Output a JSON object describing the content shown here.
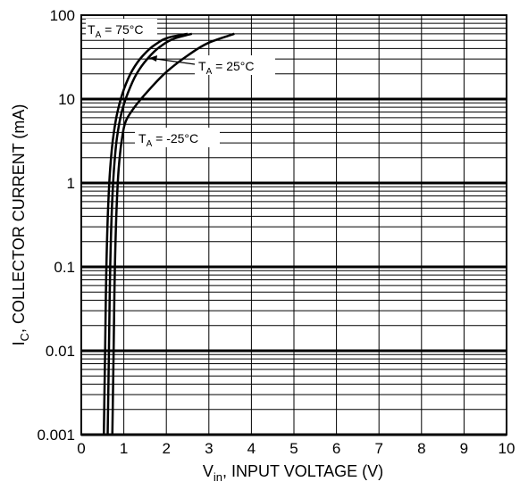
{
  "chart_data": {
    "type": "line",
    "title": "",
    "xlabel": {
      "main": "V",
      "sub": "in",
      "rest": ", INPUT VOLTAGE (V)"
    },
    "ylabel": {
      "main": "I",
      "sub": "C",
      "rest": ", COLLECTOR CURRENT (mA)"
    },
    "xlim": [
      0,
      10
    ],
    "ylim": [
      0.001,
      100
    ],
    "yscale": "log",
    "grid": true,
    "x_ticks": [
      0,
      1,
      2,
      3,
      4,
      5,
      6,
      7,
      8,
      9,
      10
    ],
    "x_tick_labels": [
      "0",
      "1",
      "2",
      "3",
      "4",
      "5",
      "6",
      "7",
      "8",
      "9",
      "10"
    ],
    "y_ticks": [
      0.001,
      0.01,
      0.1,
      1,
      10,
      100
    ],
    "y_tick_labels": [
      "0.001",
      "0.01",
      "0.1",
      "1",
      "10",
      "100"
    ],
    "series": [
      {
        "name": "T_A = 75°C",
        "label_main": "T",
        "label_sub": "A",
        "label_rest": " = 75°C",
        "x": [
          0.53,
          0.56,
          0.59,
          0.63,
          0.68,
          0.75,
          0.85,
          1.0,
          1.2,
          1.45,
          1.75,
          2.1,
          2.5
        ],
        "y": [
          0.001,
          0.01,
          0.1,
          0.5,
          1.5,
          3.5,
          7,
          13,
          22,
          33,
          45,
          55,
          60
        ]
      },
      {
        "name": "T_A = 25°C",
        "label_main": "T",
        "label_sub": "A",
        "label_rest": " = 25°C",
        "x": [
          0.62,
          0.65,
          0.68,
          0.72,
          0.77,
          0.84,
          0.95,
          1.1,
          1.3,
          1.55,
          1.85,
          2.2,
          2.6
        ],
        "y": [
          0.001,
          0.01,
          0.1,
          0.5,
          1.5,
          3.5,
          7,
          12,
          20,
          30,
          42,
          53,
          60
        ]
      },
      {
        "name": "T_A = -25°C",
        "label_main": "T",
        "label_sub": "A",
        "label_rest": " = -25°C",
        "x": [
          0.73,
          0.76,
          0.79,
          0.83,
          0.88,
          0.95,
          1.05,
          1.25,
          1.6,
          2.0,
          2.5,
          3.0,
          3.6
        ],
        "y": [
          0.001,
          0.01,
          0.1,
          0.5,
          1.5,
          3.2,
          5.5,
          8,
          13,
          21,
          33,
          47,
          60
        ]
      }
    ]
  }
}
